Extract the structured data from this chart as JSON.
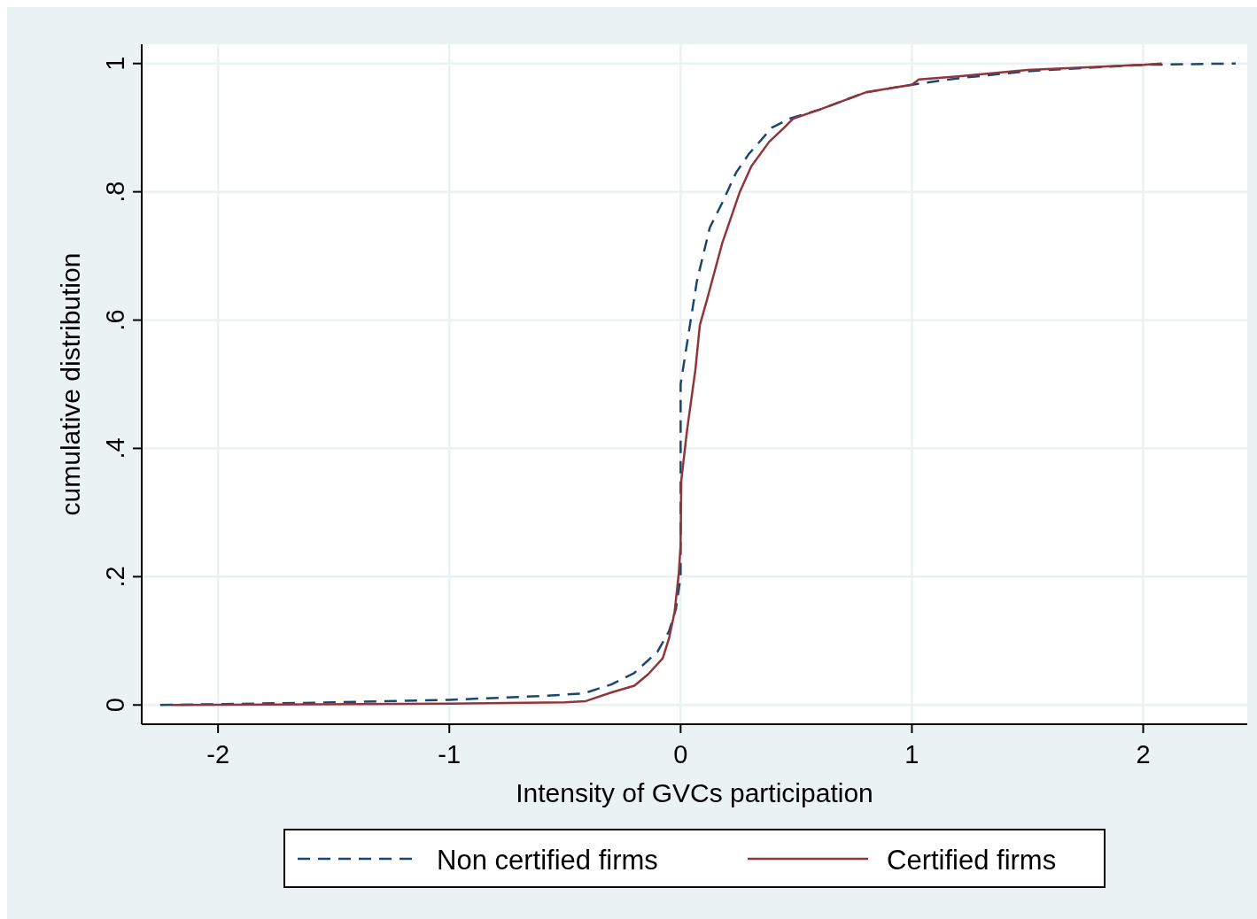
{
  "chart_data": {
    "type": "line",
    "xlabel": "Intensity of GVCs participation",
    "ylabel": "cumulative distribution",
    "xlim": [
      -2.33,
      2.45
    ],
    "ylim": [
      -0.03,
      1.03
    ],
    "xticks": [
      -2,
      -1,
      0,
      1,
      2
    ],
    "yticks": [
      0,
      {
        "value": 0.2,
        "label": ".2"
      },
      {
        "value": 0.4,
        "label": ".4"
      },
      {
        "value": 0.6,
        "label": ".6"
      },
      {
        "value": 0.8,
        "label": ".8"
      },
      1
    ],
    "grid": true,
    "legend": "bottom",
    "series": [
      {
        "name": "Non certified firms",
        "color": "#1a476f",
        "line_style": "dashed",
        "x": [
          -2.25,
          -1.5,
          -1.0,
          -0.6,
          -0.42,
          -0.3,
          -0.2,
          -0.1,
          -0.05,
          -0.02,
          0,
          0,
          0.07,
          0.126,
          0.18,
          0.24,
          0.295,
          0.395,
          0.47,
          0.6,
          0.8,
          1.0,
          1.2,
          1.5,
          2.0,
          2.4
        ],
        "values": [
          0,
          0.004,
          0.008,
          0.014,
          0.018,
          0.032,
          0.05,
          0.083,
          0.115,
          0.15,
          0.2,
          0.5,
          0.66,
          0.744,
          0.783,
          0.83,
          0.859,
          0.9,
          0.914,
          0.928,
          0.955,
          0.967,
          0.977,
          0.988,
          0.998,
          1.0
        ]
      },
      {
        "name": "Certified firms",
        "color": "#90353b",
        "line_style": "solid",
        "x": [
          -2.2,
          -1.0,
          -0.5,
          -0.41,
          -0.295,
          -0.2,
          -0.14,
          -0.077,
          -0.05,
          -0.026,
          -0.008,
          0,
          0.003,
          0.027,
          0.064,
          0.083,
          0.115,
          0.18,
          0.256,
          0.306,
          0.383,
          0.448,
          0.486,
          0.6,
          0.8,
          1.0,
          1.03,
          1.2,
          1.5,
          2.0,
          2.08
        ],
        "values": [
          0,
          0.002,
          0.004,
          0.006,
          0.02,
          0.03,
          0.048,
          0.073,
          0.104,
          0.145,
          0.205,
          0.25,
          0.35,
          0.426,
          0.523,
          0.592,
          0.633,
          0.72,
          0.8,
          0.84,
          0.878,
          0.9,
          0.914,
          0.928,
          0.955,
          0.967,
          0.975,
          0.98,
          0.99,
          0.998,
          1.0
        ]
      }
    ]
  }
}
